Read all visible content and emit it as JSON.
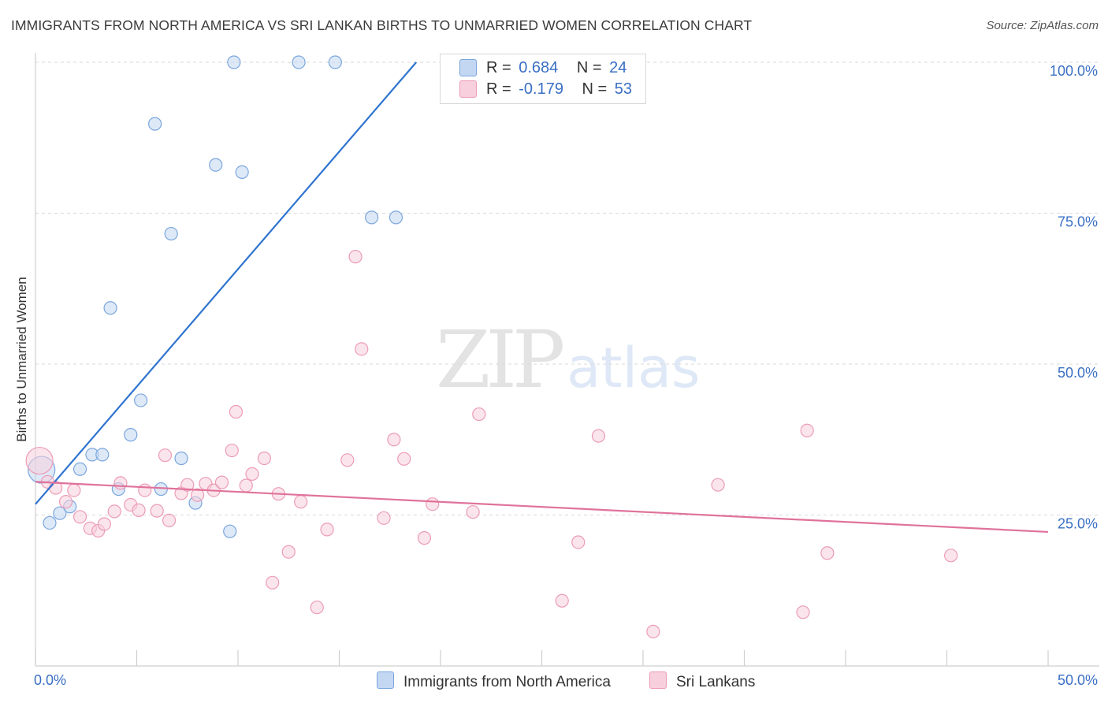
{
  "header": {
    "title": "IMMIGRANTS FROM NORTH AMERICA VS SRI LANKAN BIRTHS TO UNMARRIED WOMEN CORRELATION CHART",
    "source": "Source: ZipAtlas.com"
  },
  "watermark": {
    "zip": "ZIP",
    "atlas": "atlas"
  },
  "legend": {
    "blue": {
      "r_label": "R =",
      "r_value": "0.684",
      "n_label": "N =",
      "n_value": "24"
    },
    "pink": {
      "r_label": "R =",
      "r_value": "-0.179",
      "n_label": "N =",
      "n_value": "53"
    }
  },
  "bottom_legend": {
    "blue_label": "Immigrants from North America",
    "pink_label": "Sri Lankans"
  },
  "colors": {
    "blue_fill": "#c3d7f3",
    "blue_stroke": "#7aa6dd",
    "blue_line": "#2f74cf",
    "pink_fill": "#f8cfdc",
    "pink_stroke": "#ec9cb5",
    "pink_line": "#e0729b",
    "axis_text": "#3a6fc4",
    "grid": "#d9d9d9"
  },
  "chart_data": {
    "type": "scatter",
    "title": "IMMIGRANTS FROM NORTH AMERICA VS SRI LANKAN BIRTHS TO UNMARRIED WOMEN CORRELATION CHART",
    "xlabel": "",
    "ylabel": "Births to Unmarried Women",
    "xlim": [
      0,
      50
    ],
    "ylim": [
      0,
      100
    ],
    "x_tick_labels": [
      "0.0%",
      "50.0%"
    ],
    "y_ticks": [
      25,
      50,
      75,
      100
    ],
    "y_tick_labels": [
      "25.0%",
      "50.0%",
      "75.0%",
      "100.0%"
    ],
    "grid": true,
    "legend_position": "top-center",
    "series": [
      {
        "name": "Immigrants from North America",
        "r": 0.684,
        "n": 24,
        "points": [
          {
            "x": 0.3,
            "y": 32.5,
            "big": true
          },
          {
            "x": 0.7,
            "y": 23.7
          },
          {
            "x": 1.2,
            "y": 25.3
          },
          {
            "x": 1.7,
            "y": 26.4
          },
          {
            "x": 2.2,
            "y": 32.6
          },
          {
            "x": 2.8,
            "y": 35
          },
          {
            "x": 3.3,
            "y": 35
          },
          {
            "x": 3.7,
            "y": 59.3
          },
          {
            "x": 4.1,
            "y": 29.3
          },
          {
            "x": 4.7,
            "y": 38.3
          },
          {
            "x": 5.2,
            "y": 44
          },
          {
            "x": 5.9,
            "y": 89.8
          },
          {
            "x": 6.2,
            "y": 29.3
          },
          {
            "x": 6.7,
            "y": 71.6
          },
          {
            "x": 7.2,
            "y": 34.4
          },
          {
            "x": 7.9,
            "y": 27
          },
          {
            "x": 8.9,
            "y": 83
          },
          {
            "x": 9.6,
            "y": 22.3
          },
          {
            "x": 9.8,
            "y": 100
          },
          {
            "x": 10.2,
            "y": 81.8
          },
          {
            "x": 13,
            "y": 100
          },
          {
            "x": 14.8,
            "y": 100
          },
          {
            "x": 16.6,
            "y": 74.3
          },
          {
            "x": 17.8,
            "y": 74.3
          }
        ],
        "trend": {
          "x0": 0,
          "y0": 26.8,
          "x1": 18.8,
          "y1": 100
        }
      },
      {
        "name": "Sri Lankans",
        "r": -0.179,
        "n": 53,
        "points": [
          {
            "x": 0.2,
            "y": 34,
            "big": true
          },
          {
            "x": 0.6,
            "y": 30.5
          },
          {
            "x": 1,
            "y": 29.5
          },
          {
            "x": 1.5,
            "y": 27.2
          },
          {
            "x": 1.9,
            "y": 29.1
          },
          {
            "x": 2.2,
            "y": 24.7
          },
          {
            "x": 2.7,
            "y": 22.8
          },
          {
            "x": 3.1,
            "y": 22.4
          },
          {
            "x": 3.4,
            "y": 23.5
          },
          {
            "x": 3.9,
            "y": 25.6
          },
          {
            "x": 4.2,
            "y": 30.3
          },
          {
            "x": 4.7,
            "y": 26.7
          },
          {
            "x": 5.1,
            "y": 25.8
          },
          {
            "x": 5.4,
            "y": 29.1
          },
          {
            "x": 6,
            "y": 25.7
          },
          {
            "x": 6.4,
            "y": 34.9
          },
          {
            "x": 6.6,
            "y": 24.1
          },
          {
            "x": 7.2,
            "y": 28.6
          },
          {
            "x": 7.5,
            "y": 30
          },
          {
            "x": 8,
            "y": 28.3
          },
          {
            "x": 8.4,
            "y": 30.2
          },
          {
            "x": 8.8,
            "y": 29.1
          },
          {
            "x": 9.2,
            "y": 30.4
          },
          {
            "x": 9.7,
            "y": 35.7
          },
          {
            "x": 9.9,
            "y": 42.1
          },
          {
            "x": 10.4,
            "y": 29.9
          },
          {
            "x": 10.7,
            "y": 31.8
          },
          {
            "x": 11.3,
            "y": 34.4
          },
          {
            "x": 11.7,
            "y": 13.8
          },
          {
            "x": 12,
            "y": 28.5
          },
          {
            "x": 12.5,
            "y": 18.9
          },
          {
            "x": 13.1,
            "y": 27.2
          },
          {
            "x": 13.9,
            "y": 9.7
          },
          {
            "x": 14.4,
            "y": 22.6
          },
          {
            "x": 15.4,
            "y": 34.1
          },
          {
            "x": 15.8,
            "y": 67.8
          },
          {
            "x": 16.1,
            "y": 52.5
          },
          {
            "x": 17.2,
            "y": 24.5
          },
          {
            "x": 17.7,
            "y": 37.5
          },
          {
            "x": 18.2,
            "y": 34.3
          },
          {
            "x": 19.2,
            "y": 21.2
          },
          {
            "x": 19.6,
            "y": 26.8
          },
          {
            "x": 21.6,
            "y": 25.5
          },
          {
            "x": 21.9,
            "y": 41.7
          },
          {
            "x": 26,
            "y": 10.8
          },
          {
            "x": 26.8,
            "y": 20.5
          },
          {
            "x": 27.8,
            "y": 38.1
          },
          {
            "x": 30.5,
            "y": 5.7
          },
          {
            "x": 33.7,
            "y": 30
          },
          {
            "x": 37.9,
            "y": 8.9
          },
          {
            "x": 38.1,
            "y": 39
          },
          {
            "x": 39.1,
            "y": 18.7
          },
          {
            "x": 45.2,
            "y": 18.3
          }
        ],
        "trend": {
          "x0": 0,
          "y0": 30.5,
          "x1": 50,
          "y1": 22.2
        }
      }
    ]
  }
}
